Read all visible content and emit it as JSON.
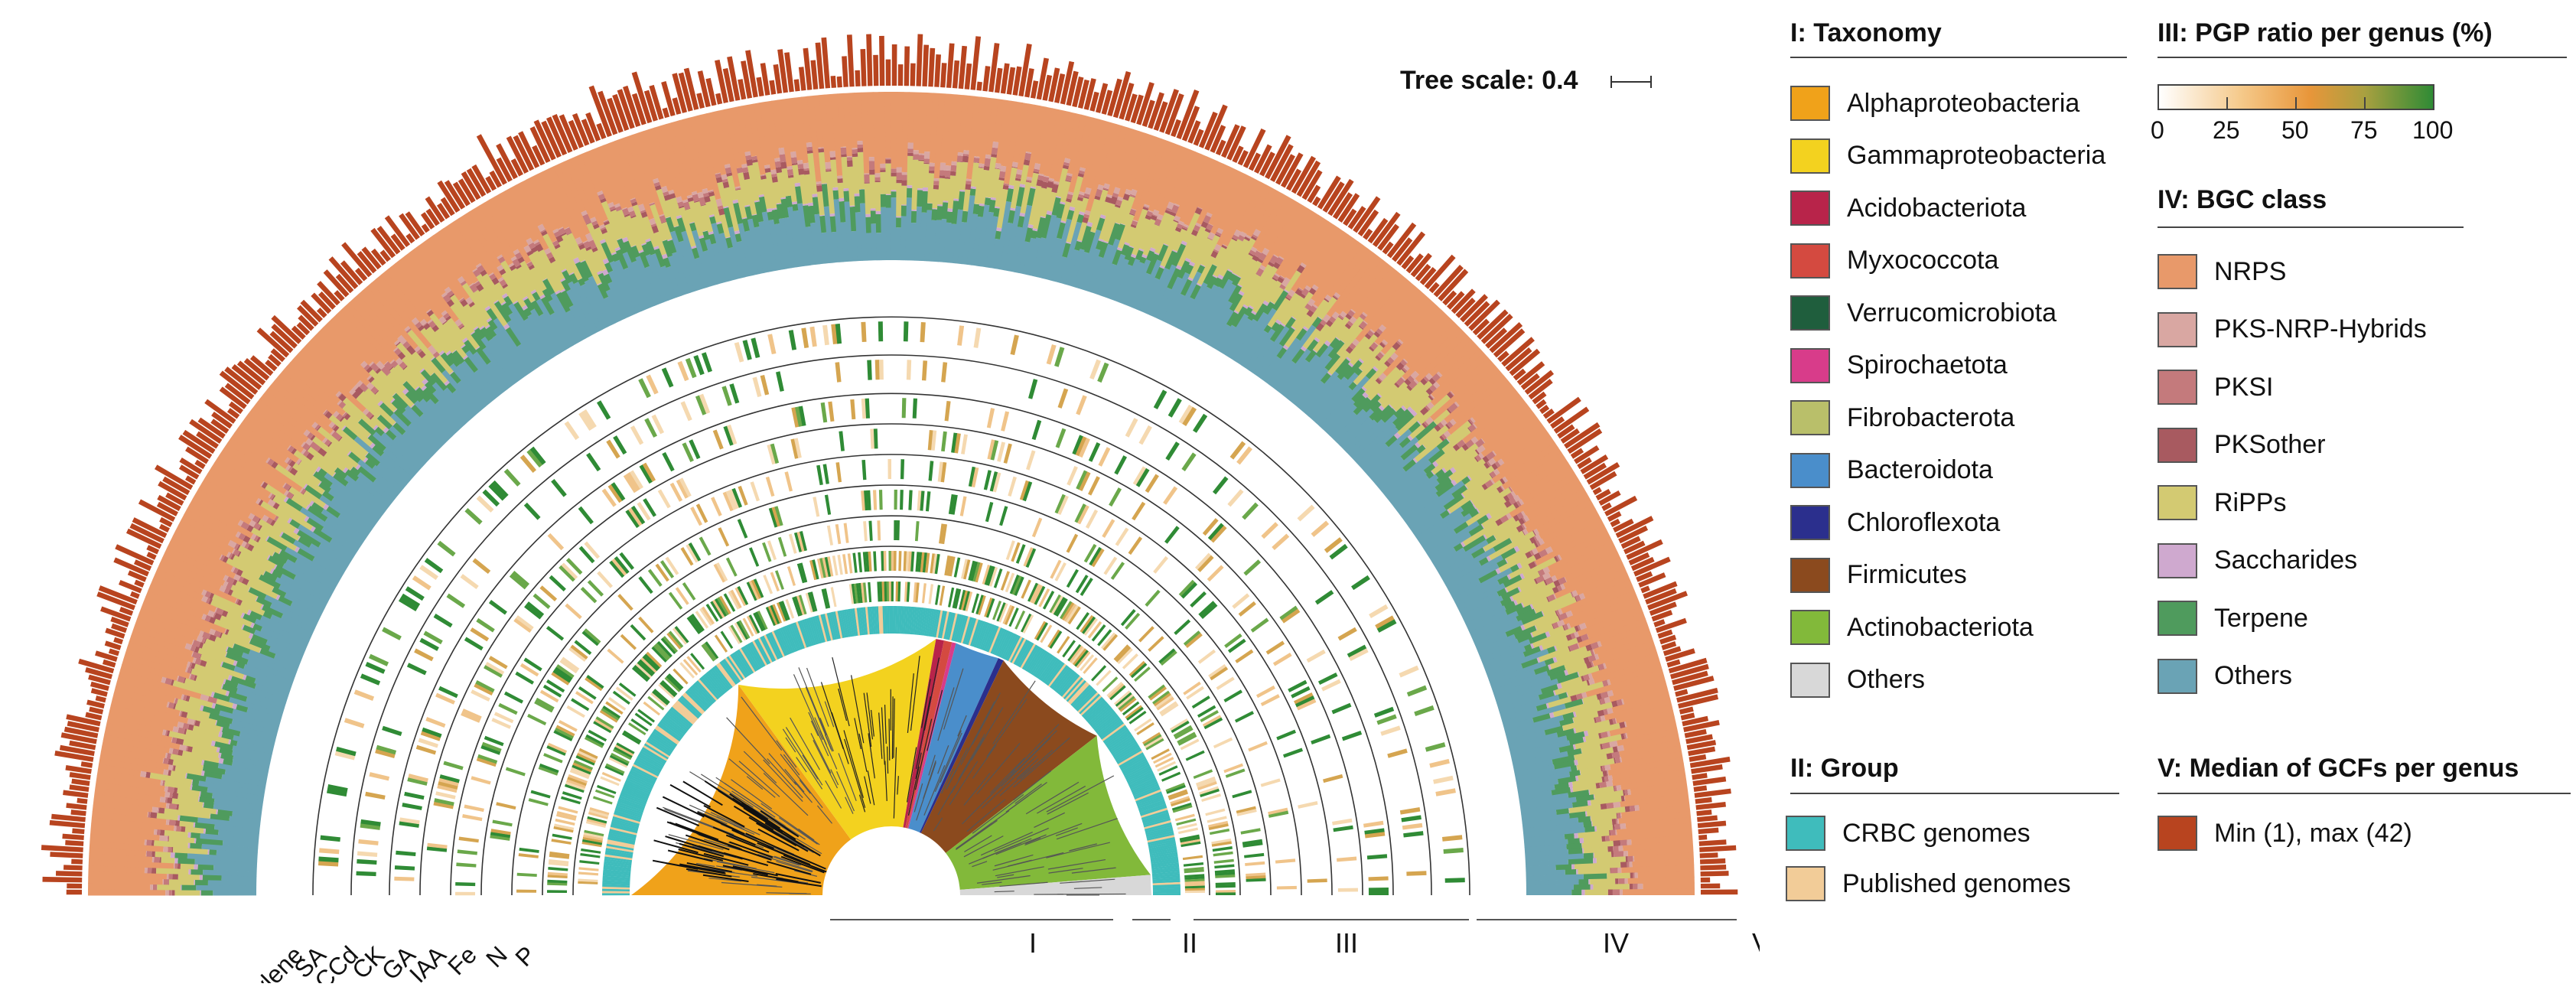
{
  "tree_scale": "Tree scale: 0.4",
  "ring_labels": [
    "Ethylene",
    "SA",
    "ACCd",
    "CK",
    "GA",
    "IAA",
    "Fe",
    "N",
    "P"
  ],
  "section_labels": [
    "I",
    "II",
    "III",
    "IV",
    "V"
  ],
  "legend": {
    "taxonomy": {
      "title": "I: Taxonomy",
      "items": [
        {
          "label": "Alphaproteobacteria",
          "color": "#f0a21a"
        },
        {
          "label": "Gammaproteobacteria",
          "color": "#f3d21f"
        },
        {
          "label": "Acidobacteriota",
          "color": "#b8244a"
        },
        {
          "label": "Myxococcota",
          "color": "#d44a40"
        },
        {
          "label": "Verrucomicrobiota",
          "color": "#1f5e3d"
        },
        {
          "label": "Spirochaetota",
          "color": "#d83c8a"
        },
        {
          "label": "Fibrobacterota",
          "color": "#b9bf6a"
        },
        {
          "label": "Bacteroidota",
          "color": "#4a8ecb"
        },
        {
          "label": "Chloroflexota",
          "color": "#2b2f8d"
        },
        {
          "label": "Firmicutes",
          "color": "#8b4a1e"
        },
        {
          "label": "Actinobacteriota",
          "color": "#82b93a"
        },
        {
          "label": "Others",
          "color": "#d8d8d8"
        }
      ]
    },
    "group": {
      "title": "II: Group",
      "items": [
        {
          "label": "CRBC genomes",
          "color": "#3fbcbc"
        },
        {
          "label": "Published genomes",
          "color": "#f2cc98"
        }
      ]
    },
    "pgp": {
      "title": "III: PGP ratio per genus (%)",
      "ticks": [
        "0",
        "25",
        "50",
        "75",
        "100"
      ]
    },
    "bgc": {
      "title": "IV: BGC class",
      "items": [
        {
          "label": "NRPS",
          "color": "#e8996a"
        },
        {
          "label": "PKS-NRP-Hybrids",
          "color": "#d9a7a2"
        },
        {
          "label": "PKSI",
          "color": "#c47a7c"
        },
        {
          "label": "PKSother",
          "color": "#a85a60"
        },
        {
          "label": "RiPPs",
          "color": "#d3ca72"
        },
        {
          "label": "Saccharides",
          "color": "#cfa9cf"
        },
        {
          "label": "Terpene",
          "color": "#4f9b5d"
        },
        {
          "label": "Others",
          "color": "#6aa3b5"
        }
      ]
    },
    "gcf": {
      "title": "V: Median of GCFs per genus",
      "items": [
        {
          "label": "Min (1), max (42)",
          "color": "#b8441f"
        }
      ]
    }
  }
}
